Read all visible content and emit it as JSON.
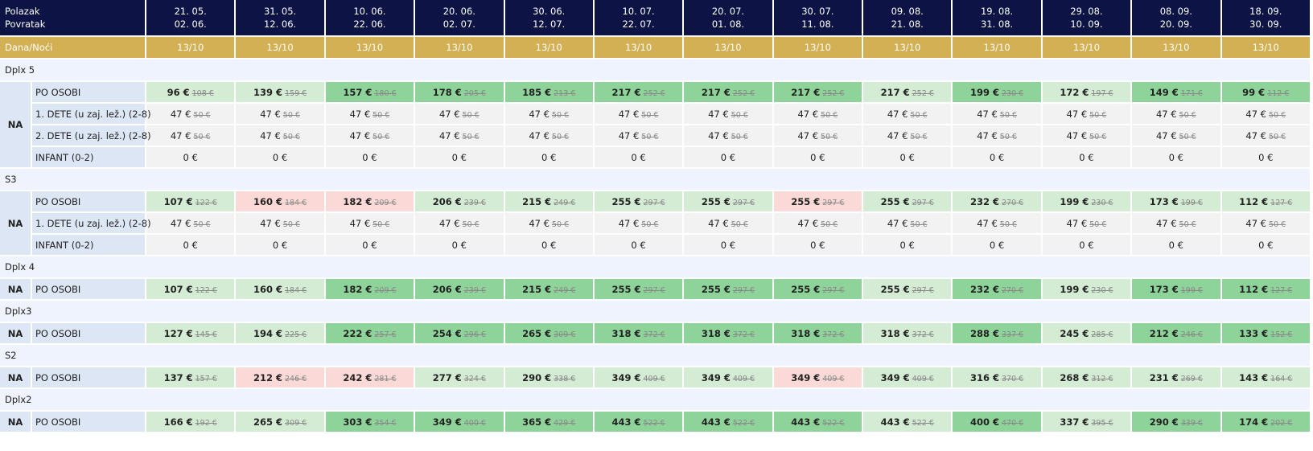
{
  "header": {
    "labels": [
      "Polazak",
      "Povratak"
    ],
    "departures": [
      "21. 05.",
      "31. 05.",
      "10. 06.",
      "20. 06.",
      "30. 06.",
      "10. 07.",
      "20. 07.",
      "30. 07.",
      "09. 08.",
      "19. 08.",
      "29. 08.",
      "08. 09.",
      "18. 09."
    ],
    "returns": [
      "02. 06.",
      "12. 06.",
      "22. 06.",
      "02. 07.",
      "12. 07.",
      "22. 07.",
      "01. 08.",
      "11. 08.",
      "21. 08.",
      "31. 08.",
      "10. 09.",
      "20. 09.",
      "30. 09."
    ],
    "nights_label": "Dana/Noći",
    "nights": [
      "13/10",
      "13/10",
      "13/10",
      "13/10",
      "13/10",
      "13/10",
      "13/10",
      "13/10",
      "13/10",
      "13/10",
      "13/10",
      "13/10",
      "13/10"
    ]
  },
  "sections": [
    {
      "name": "Dplx 5",
      "board": "NA",
      "rows": [
        {
          "label": "PO OSOBI",
          "prices": [
            "96 €",
            "139 €",
            "157 €",
            "178 €",
            "185 €",
            "217 €",
            "217 €",
            "217 €",
            "217 €",
            "199 €",
            "172 €",
            "149 €",
            "99 €"
          ],
          "old": [
            "108 €",
            "159 €",
            "180 €",
            "205 €",
            "213 €",
            "252 €",
            "252 €",
            "252 €",
            "252 €",
            "230 €",
            "197 €",
            "171 €",
            "112 €"
          ],
          "colors": [
            "#d5ecd4",
            "#d5ecd4",
            "#8ed49a",
            "#8ed49a",
            "#8ed49a",
            "#8ed49a",
            "#8ed49a",
            "#8ed49a",
            "#d5ecd4",
            "#8ed49a",
            "#d5ecd4",
            "#8ed49a",
            "#8ed49a"
          ]
        },
        {
          "label": "1. DETE (u zaj. lež.) (2-8)",
          "prices": [
            "47 €",
            "47 €",
            "47 €",
            "47 €",
            "47 €",
            "47 €",
            "47 €",
            "47 €",
            "47 €",
            "47 €",
            "47 €",
            "47 €",
            "47 €"
          ],
          "old": [
            "50 €",
            "50 €",
            "50 €",
            "50 €",
            "50 €",
            "50 €",
            "50 €",
            "50 €",
            "50 €",
            "50 €",
            "50 €",
            "50 €",
            "50 €"
          ]
        },
        {
          "label": "2. DETE (u zaj. lež.) (2-8)",
          "prices": [
            "47 €",
            "47 €",
            "47 €",
            "47 €",
            "47 €",
            "47 €",
            "47 €",
            "47 €",
            "47 €",
            "47 €",
            "47 €",
            "47 €",
            "47 €"
          ],
          "old": [
            "50 €",
            "50 €",
            "50 €",
            "50 €",
            "50 €",
            "50 €",
            "50 €",
            "50 €",
            "50 €",
            "50 €",
            "50 €",
            "50 €",
            "50 €"
          ]
        },
        {
          "label": "INFANT (0-2)",
          "prices": [
            "0 €",
            "0 €",
            "0 €",
            "0 €",
            "0 €",
            "0 €",
            "0 €",
            "0 €",
            "0 €",
            "0 €",
            "0 €",
            "0 €",
            "0 €"
          ]
        }
      ]
    },
    {
      "name": "S3",
      "board": "NA",
      "rows": [
        {
          "label": "PO OSOBI",
          "prices": [
            "107 €",
            "160 €",
            "182 €",
            "206 €",
            "215 €",
            "255 €",
            "255 €",
            "255 €",
            "255 €",
            "232 €",
            "199 €",
            "173 €",
            "112 €"
          ],
          "old": [
            "122 €",
            "184 €",
            "209 €",
            "239 €",
            "249 €",
            "297 €",
            "297 €",
            "297 €",
            "297 €",
            "270 €",
            "230 €",
            "199 €",
            "127 €"
          ],
          "colors": [
            "#d5ecd4",
            "#fbd9d7",
            "#fbd9d7",
            "#d5ecd4",
            "#d5ecd4",
            "#d5ecd4",
            "#d5ecd4",
            "#fbd9d7",
            "#d5ecd4",
            "#d5ecd4",
            "#d5ecd4",
            "#d5ecd4",
            "#d5ecd4"
          ]
        },
        {
          "label": "1. DETE (u zaj. lež.) (2-8)",
          "prices": [
            "47 €",
            "47 €",
            "47 €",
            "47 €",
            "47 €",
            "47 €",
            "47 €",
            "47 €",
            "47 €",
            "47 €",
            "47 €",
            "47 €",
            "47 €"
          ],
          "old": [
            "50 €",
            "50 €",
            "50 €",
            "50 €",
            "50 €",
            "50 €",
            "50 €",
            "50 €",
            "50 €",
            "50 €",
            "50 €",
            "50 €",
            "50 €"
          ]
        },
        {
          "label": "INFANT (0-2)",
          "prices": [
            "0 €",
            "0 €",
            "0 €",
            "0 €",
            "0 €",
            "0 €",
            "0 €",
            "0 €",
            "0 €",
            "0 €",
            "0 €",
            "0 €",
            "0 €"
          ]
        }
      ]
    },
    {
      "name": "Dplx 4",
      "board": "NA",
      "rows": [
        {
          "label": "PO OSOBI",
          "prices": [
            "107 €",
            "160 €",
            "182 €",
            "206 €",
            "215 €",
            "255 €",
            "255 €",
            "255 €",
            "255 €",
            "232 €",
            "199 €",
            "173 €",
            "112 €"
          ],
          "old": [
            "122 €",
            "184 €",
            "209 €",
            "239 €",
            "249 €",
            "297 €",
            "297 €",
            "297 €",
            "297 €",
            "270 €",
            "230 €",
            "199 €",
            "127 €"
          ],
          "colors": [
            "#d5ecd4",
            "#d5ecd4",
            "#8ed49a",
            "#8ed49a",
            "#8ed49a",
            "#8ed49a",
            "#8ed49a",
            "#8ed49a",
            "#d5ecd4",
            "#8ed49a",
            "#d5ecd4",
            "#8ed49a",
            "#8ed49a"
          ]
        }
      ]
    },
    {
      "name": "Dplx3",
      "board": "NA",
      "rows": [
        {
          "label": "PO OSOBI",
          "prices": [
            "127 €",
            "194 €",
            "222 €",
            "254 €",
            "265 €",
            "318 €",
            "318 €",
            "318 €",
            "318 €",
            "288 €",
            "245 €",
            "212 €",
            "133 €"
          ],
          "old": [
            "145 €",
            "225 €",
            "257 €",
            "296 €",
            "309 €",
            "372 €",
            "372 €",
            "372 €",
            "372 €",
            "337 €",
            "285 €",
            "246 €",
            "152 €"
          ],
          "colors": [
            "#d5ecd4",
            "#d5ecd4",
            "#8ed49a",
            "#8ed49a",
            "#8ed49a",
            "#8ed49a",
            "#8ed49a",
            "#8ed49a",
            "#d5ecd4",
            "#8ed49a",
            "#d5ecd4",
            "#8ed49a",
            "#8ed49a"
          ]
        }
      ]
    },
    {
      "name": "S2",
      "board": "NA",
      "rows": [
        {
          "label": "PO OSOBI",
          "prices": [
            "137 €",
            "212 €",
            "242 €",
            "277 €",
            "290 €",
            "349 €",
            "349 €",
            "349 €",
            "349 €",
            "316 €",
            "268 €",
            "231 €",
            "143 €"
          ],
          "old": [
            "157 €",
            "246 €",
            "281 €",
            "324 €",
            "338 €",
            "409 €",
            "409 €",
            "409 €",
            "409 €",
            "370 €",
            "312 €",
            "269 €",
            "164 €"
          ],
          "colors": [
            "#d5ecd4",
            "#fbd9d7",
            "#fbd9d7",
            "#d5ecd4",
            "#d5ecd4",
            "#d5ecd4",
            "#d5ecd4",
            "#fbd9d7",
            "#d5ecd4",
            "#d5ecd4",
            "#d5ecd4",
            "#d5ecd4",
            "#d5ecd4"
          ]
        }
      ]
    },
    {
      "name": "Dplx2",
      "board": "NA",
      "rows": [
        {
          "label": "PO OSOBI",
          "prices": [
            "166 €",
            "265 €",
            "303 €",
            "349 €",
            "365 €",
            "443 €",
            "443 €",
            "443 €",
            "443 €",
            "400 €",
            "337 €",
            "290 €",
            "174 €"
          ],
          "old": [
            "192 €",
            "309 €",
            "354 €",
            "400 €",
            "429 €",
            "522 €",
            "522 €",
            "522 €",
            "522 €",
            "470 €",
            "395 €",
            "339 €",
            "202 €"
          ],
          "colors": [
            "#d5ecd4",
            "#d5ecd4",
            "#8ed49a",
            "#8ed49a",
            "#8ed49a",
            "#8ed49a",
            "#8ed49a",
            "#8ed49a",
            "#d5ecd4",
            "#8ed49a",
            "#d5ecd4",
            "#8ed49a",
            "#8ed49a"
          ]
        }
      ]
    }
  ]
}
